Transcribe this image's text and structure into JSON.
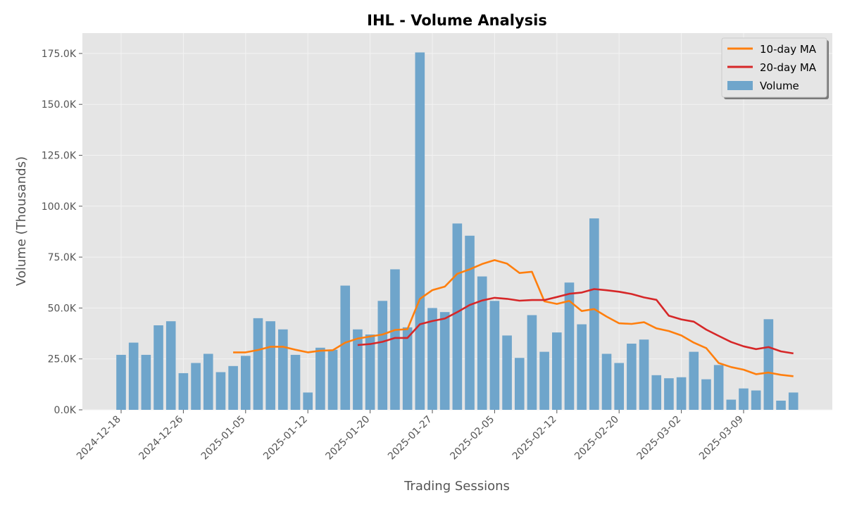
{
  "chart_data": {
    "type": "bar",
    "title": "IHL - Volume Analysis",
    "xlabel": "Trading Sessions",
    "ylabel": "Volume (Thousands)",
    "ylim": [
      0,
      185000
    ],
    "grid": true,
    "legend_position": "top-right",
    "y_ticks": [
      0,
      25000,
      50000,
      75000,
      100000,
      125000,
      150000,
      175000
    ],
    "y_tick_labels": [
      "0.0K",
      "25.0K",
      "50.0K",
      "75.0K",
      "100.0K",
      "125.0K",
      "150.0K",
      "175.0K"
    ],
    "x_tick_labels": [
      "2024-12-18",
      "2024-12-26",
      "2025-01-05",
      "2025-01-12",
      "2025-01-20",
      "2025-01-27",
      "2025-02-05",
      "2025-02-12",
      "2025-02-20",
      "2025-03-02",
      "2025-03-09"
    ],
    "x_tick_indices": [
      0,
      5,
      10,
      15,
      20,
      25,
      30,
      35,
      40,
      45,
      50
    ],
    "colors": {
      "volume": "#6fa5cb",
      "ma10": "#ff7f0e",
      "ma20": "#d62728",
      "background": "#e5e5e5",
      "grid": "#f3f3f3"
    },
    "series": [
      {
        "name": "Volume",
        "type": "bar",
        "values": [
          27000,
          33000,
          27000,
          41500,
          43500,
          18000,
          23000,
          27500,
          18500,
          21500,
          26500,
          45000,
          43500,
          39500,
          27000,
          8500,
          30500,
          29500,
          61000,
          39500,
          37000,
          53500,
          69000,
          40500,
          175500,
          50000,
          48000,
          91500,
          85500,
          65500,
          53500,
          36500,
          25500,
          46500,
          28500,
          38000,
          62500,
          42000,
          94000,
          27500,
          23000,
          32500,
          34500,
          17000,
          15500,
          16000,
          28500,
          15000,
          22000,
          5000,
          10500,
          9500,
          44500,
          4500,
          8500
        ]
      },
      {
        "name": "10-day MA",
        "type": "line",
        "values": [
          null,
          null,
          null,
          null,
          null,
          null,
          null,
          null,
          null,
          28200,
          28200,
          29400,
          31000,
          31000,
          29500,
          28200,
          29000,
          29300,
          33000,
          35000,
          36000,
          37000,
          39200,
          39600,
          54500,
          58800,
          60500,
          66800,
          69000,
          71600,
          73500,
          71800,
          67200,
          67800,
          53300,
          52000,
          53500,
          48500,
          49500,
          45800,
          42500,
          42200,
          43000,
          40000,
          38700,
          36500,
          33000,
          30300,
          23000,
          21000,
          19700,
          17500,
          18300,
          17200,
          16500
        ]
      },
      {
        "name": "20-day MA",
        "type": "line",
        "values": [
          null,
          null,
          null,
          null,
          null,
          null,
          null,
          null,
          null,
          null,
          null,
          null,
          null,
          null,
          null,
          null,
          null,
          null,
          null,
          31800,
          32300,
          33400,
          35300,
          35300,
          42000,
          43600,
          44800,
          48000,
          51500,
          53700,
          55000,
          54500,
          53600,
          53900,
          53900,
          55400,
          57000,
          57600,
          59300,
          58700,
          58000,
          56900,
          55200,
          54000,
          46200,
          44400,
          43300,
          39400,
          36300,
          33300,
          31200,
          29800,
          30800,
          28700,
          27700
        ]
      }
    ]
  }
}
